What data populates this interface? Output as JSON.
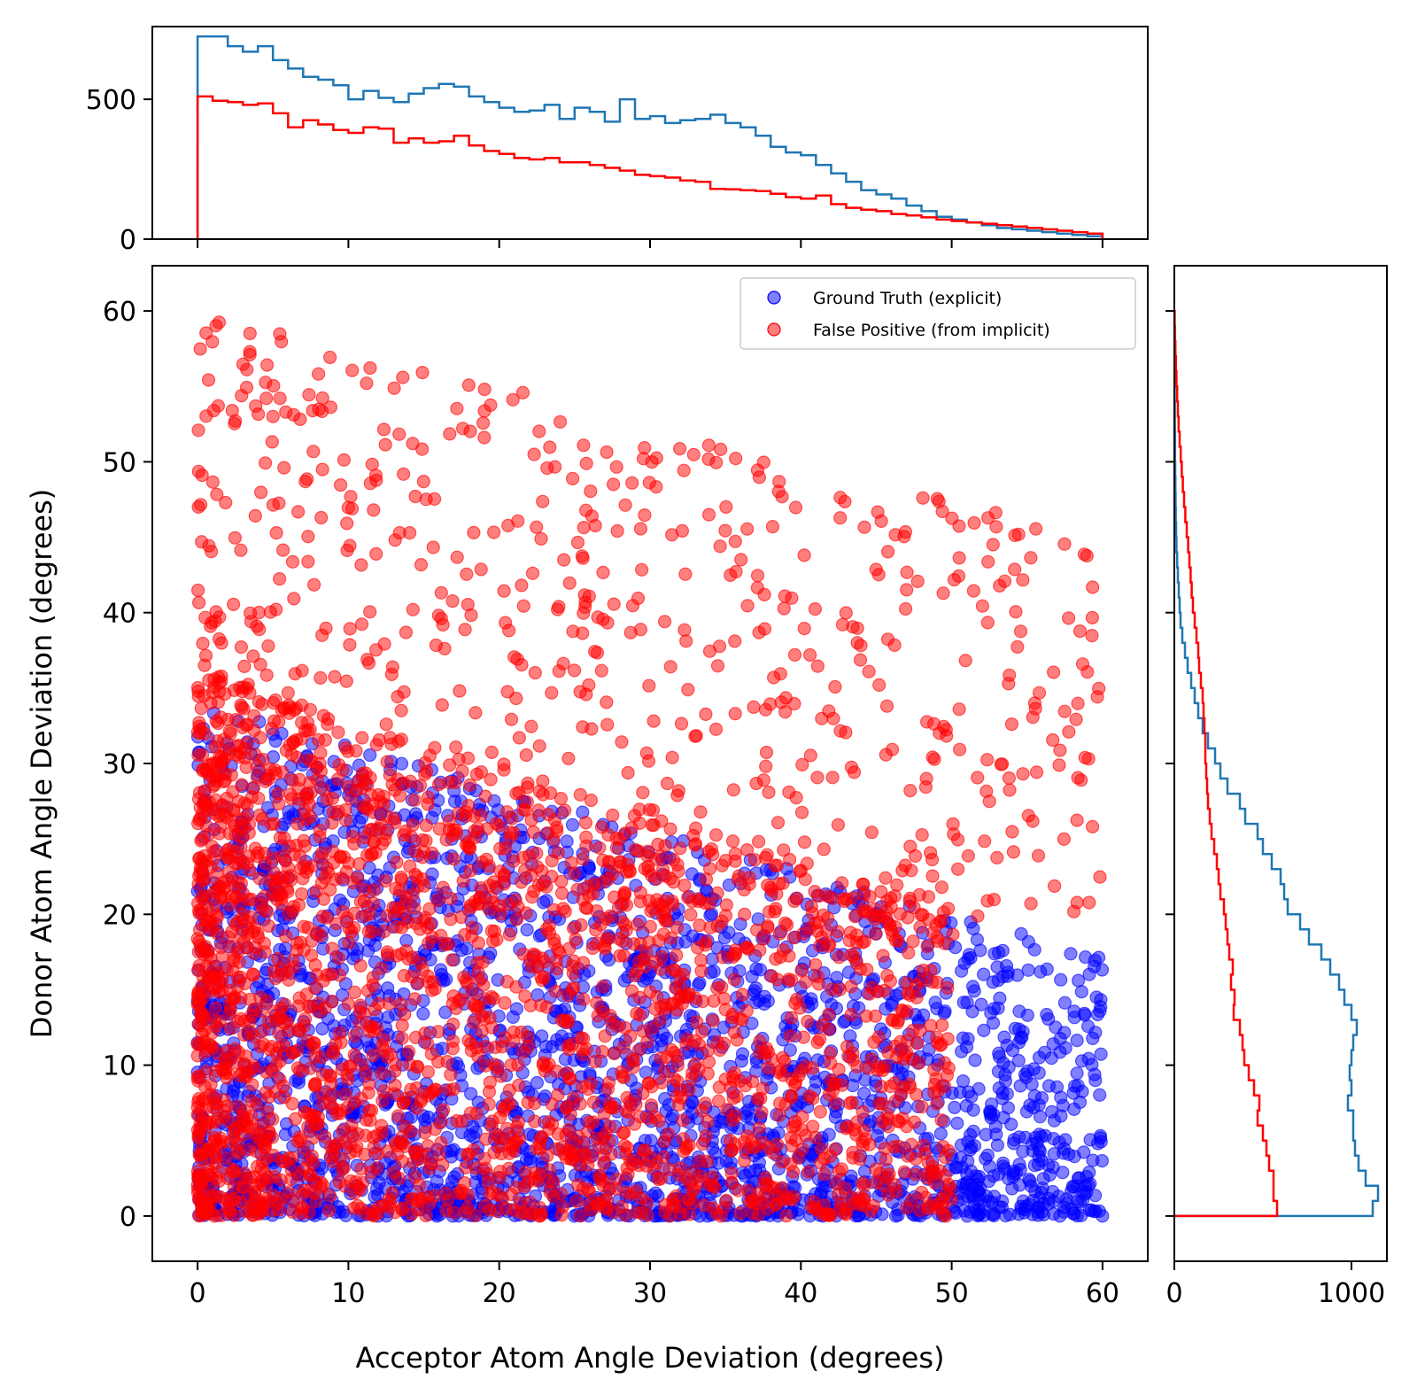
{
  "chart_data": {
    "type": "scatter",
    "xlabel": "Acceptor Atom Angle Deviation (degrees)",
    "ylabel": "Donor Atom Angle Deviation (degrees)",
    "xlim": [
      -3,
      63
    ],
    "ylim": [
      -3,
      63
    ],
    "x_ticks": [
      "0",
      "10",
      "20",
      "30",
      "40",
      "50",
      "60"
    ],
    "y_ticks": [
      "0",
      "10",
      "20",
      "30",
      "40",
      "50",
      "60"
    ],
    "grid": false,
    "legend_position": "top-right",
    "series": [
      {
        "name": "Ground Truth (explicit)",
        "color": "#0000ff"
      },
      {
        "name": "False Positive (from implicit)",
        "color": "#ff0000"
      }
    ],
    "top_histogram": {
      "bin_width": 1,
      "ylim": [
        0,
        760
      ],
      "y_ticks": [
        "0",
        "500"
      ],
      "ground_truth_counts": [
        725,
        725,
        690,
        670,
        690,
        640,
        610,
        580,
        570,
        550,
        500,
        530,
        505,
        490,
        520,
        540,
        555,
        545,
        510,
        490,
        470,
        455,
        460,
        480,
        430,
        470,
        455,
        420,
        500,
        430,
        440,
        415,
        425,
        430,
        445,
        415,
        400,
        370,
        330,
        310,
        300,
        265,
        235,
        205,
        175,
        160,
        145,
        120,
        100,
        80,
        70,
        60,
        50,
        40,
        35,
        30,
        25,
        20,
        15,
        10
      ],
      "false_positive_counts": [
        510,
        495,
        490,
        480,
        485,
        450,
        400,
        425,
        410,
        390,
        380,
        400,
        395,
        345,
        360,
        345,
        350,
        370,
        335,
        315,
        305,
        290,
        285,
        290,
        275,
        275,
        265,
        255,
        245,
        230,
        225,
        220,
        210,
        205,
        180,
        178,
        175,
        172,
        162,
        150,
        145,
        156,
        125,
        112,
        105,
        100,
        90,
        85,
        78,
        70,
        65,
        60,
        55,
        50,
        45,
        40,
        35,
        30,
        25,
        20
      ]
    },
    "right_histogram": {
      "bin_width": 1,
      "xlim": [
        0,
        1200
      ],
      "x_ticks": [
        "0",
        "1000"
      ],
      "ground_truth_counts": [
        1120,
        1150,
        1080,
        1040,
        1020,
        1010,
        1010,
        980,
        1000,
        990,
        1000,
        1010,
        1030,
        1000,
        960,
        930,
        880,
        830,
        760,
        710,
        640,
        620,
        600,
        550,
        500,
        470,
        400,
        370,
        300,
        260,
        230,
        190,
        160,
        135,
        115,
        95,
        75,
        60,
        45,
        35,
        30,
        25,
        20,
        16,
        12,
        10,
        8,
        7,
        6,
        5,
        4,
        4,
        3,
        3,
        2,
        2,
        2,
        2,
        1,
        1
      ],
      "false_positive_counts": [
        580,
        560,
        560,
        535,
        520,
        500,
        470,
        480,
        450,
        420,
        395,
        385,
        370,
        335,
        340,
        320,
        330,
        310,
        300,
        290,
        280,
        260,
        250,
        240,
        225,
        210,
        200,
        190,
        185,
        180,
        175,
        175,
        170,
        165,
        160,
        150,
        140,
        135,
        125,
        115,
        105,
        98,
        92,
        85,
        78,
        70,
        62,
        55,
        48,
        42,
        36,
        30,
        24,
        20,
        16,
        12,
        9,
        6,
        4,
        2
      ]
    }
  }
}
